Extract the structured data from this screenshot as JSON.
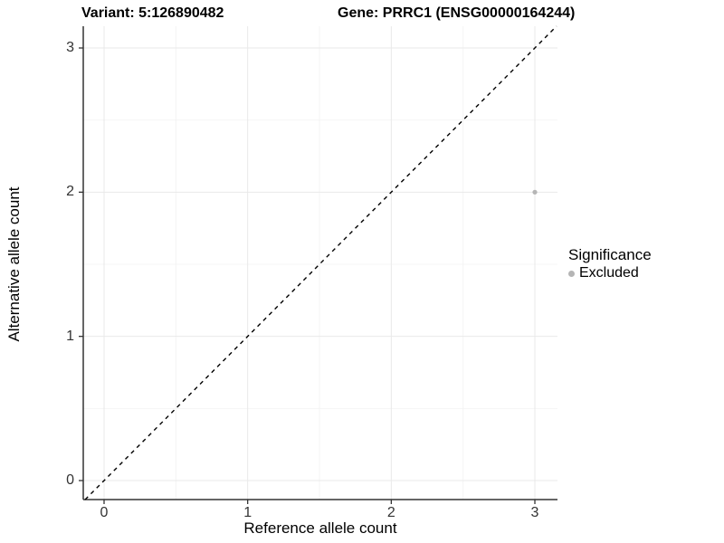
{
  "titles": {
    "variant": "Variant: 5:126890482",
    "gene": "Gene: PRRC1 (ENSG00000164244)"
  },
  "chart_data": {
    "type": "scatter",
    "title": "Variant: 5:126890482 / Gene: PRRC1 (ENSG00000164244)",
    "xlabel": "Reference allele count",
    "ylabel": "Alternative allele count",
    "xlim": [
      -0.145,
      3.157
    ],
    "ylim": [
      -0.132,
      3.151
    ],
    "x_ticks": [
      0,
      1,
      2,
      3
    ],
    "y_ticks": [
      0,
      1,
      2,
      3
    ],
    "x_minor_ticks": [
      0.5,
      1.5,
      2.5
    ],
    "y_minor_ticks": [
      0.5,
      1.5,
      2.5
    ],
    "grid": true,
    "series": [
      {
        "name": "Excluded",
        "color": "#b5b5b5",
        "points": [
          {
            "x": 3,
            "y": 2
          }
        ]
      }
    ],
    "reference_line": {
      "type": "identity",
      "slope": 1,
      "intercept": 0,
      "style": "dashed",
      "color": "#000000"
    },
    "legend": {
      "title": "Significance",
      "position": "right",
      "items": [
        {
          "label": "Excluded",
          "color": "#b5b5b5"
        }
      ]
    }
  },
  "colors": {
    "grid_major": "#e9e9e9",
    "grid_minor": "#f4f4f4",
    "axis_line": "#333333",
    "tick_text": "#333333",
    "point": "#b5b5b5",
    "background": "#ffffff"
  }
}
